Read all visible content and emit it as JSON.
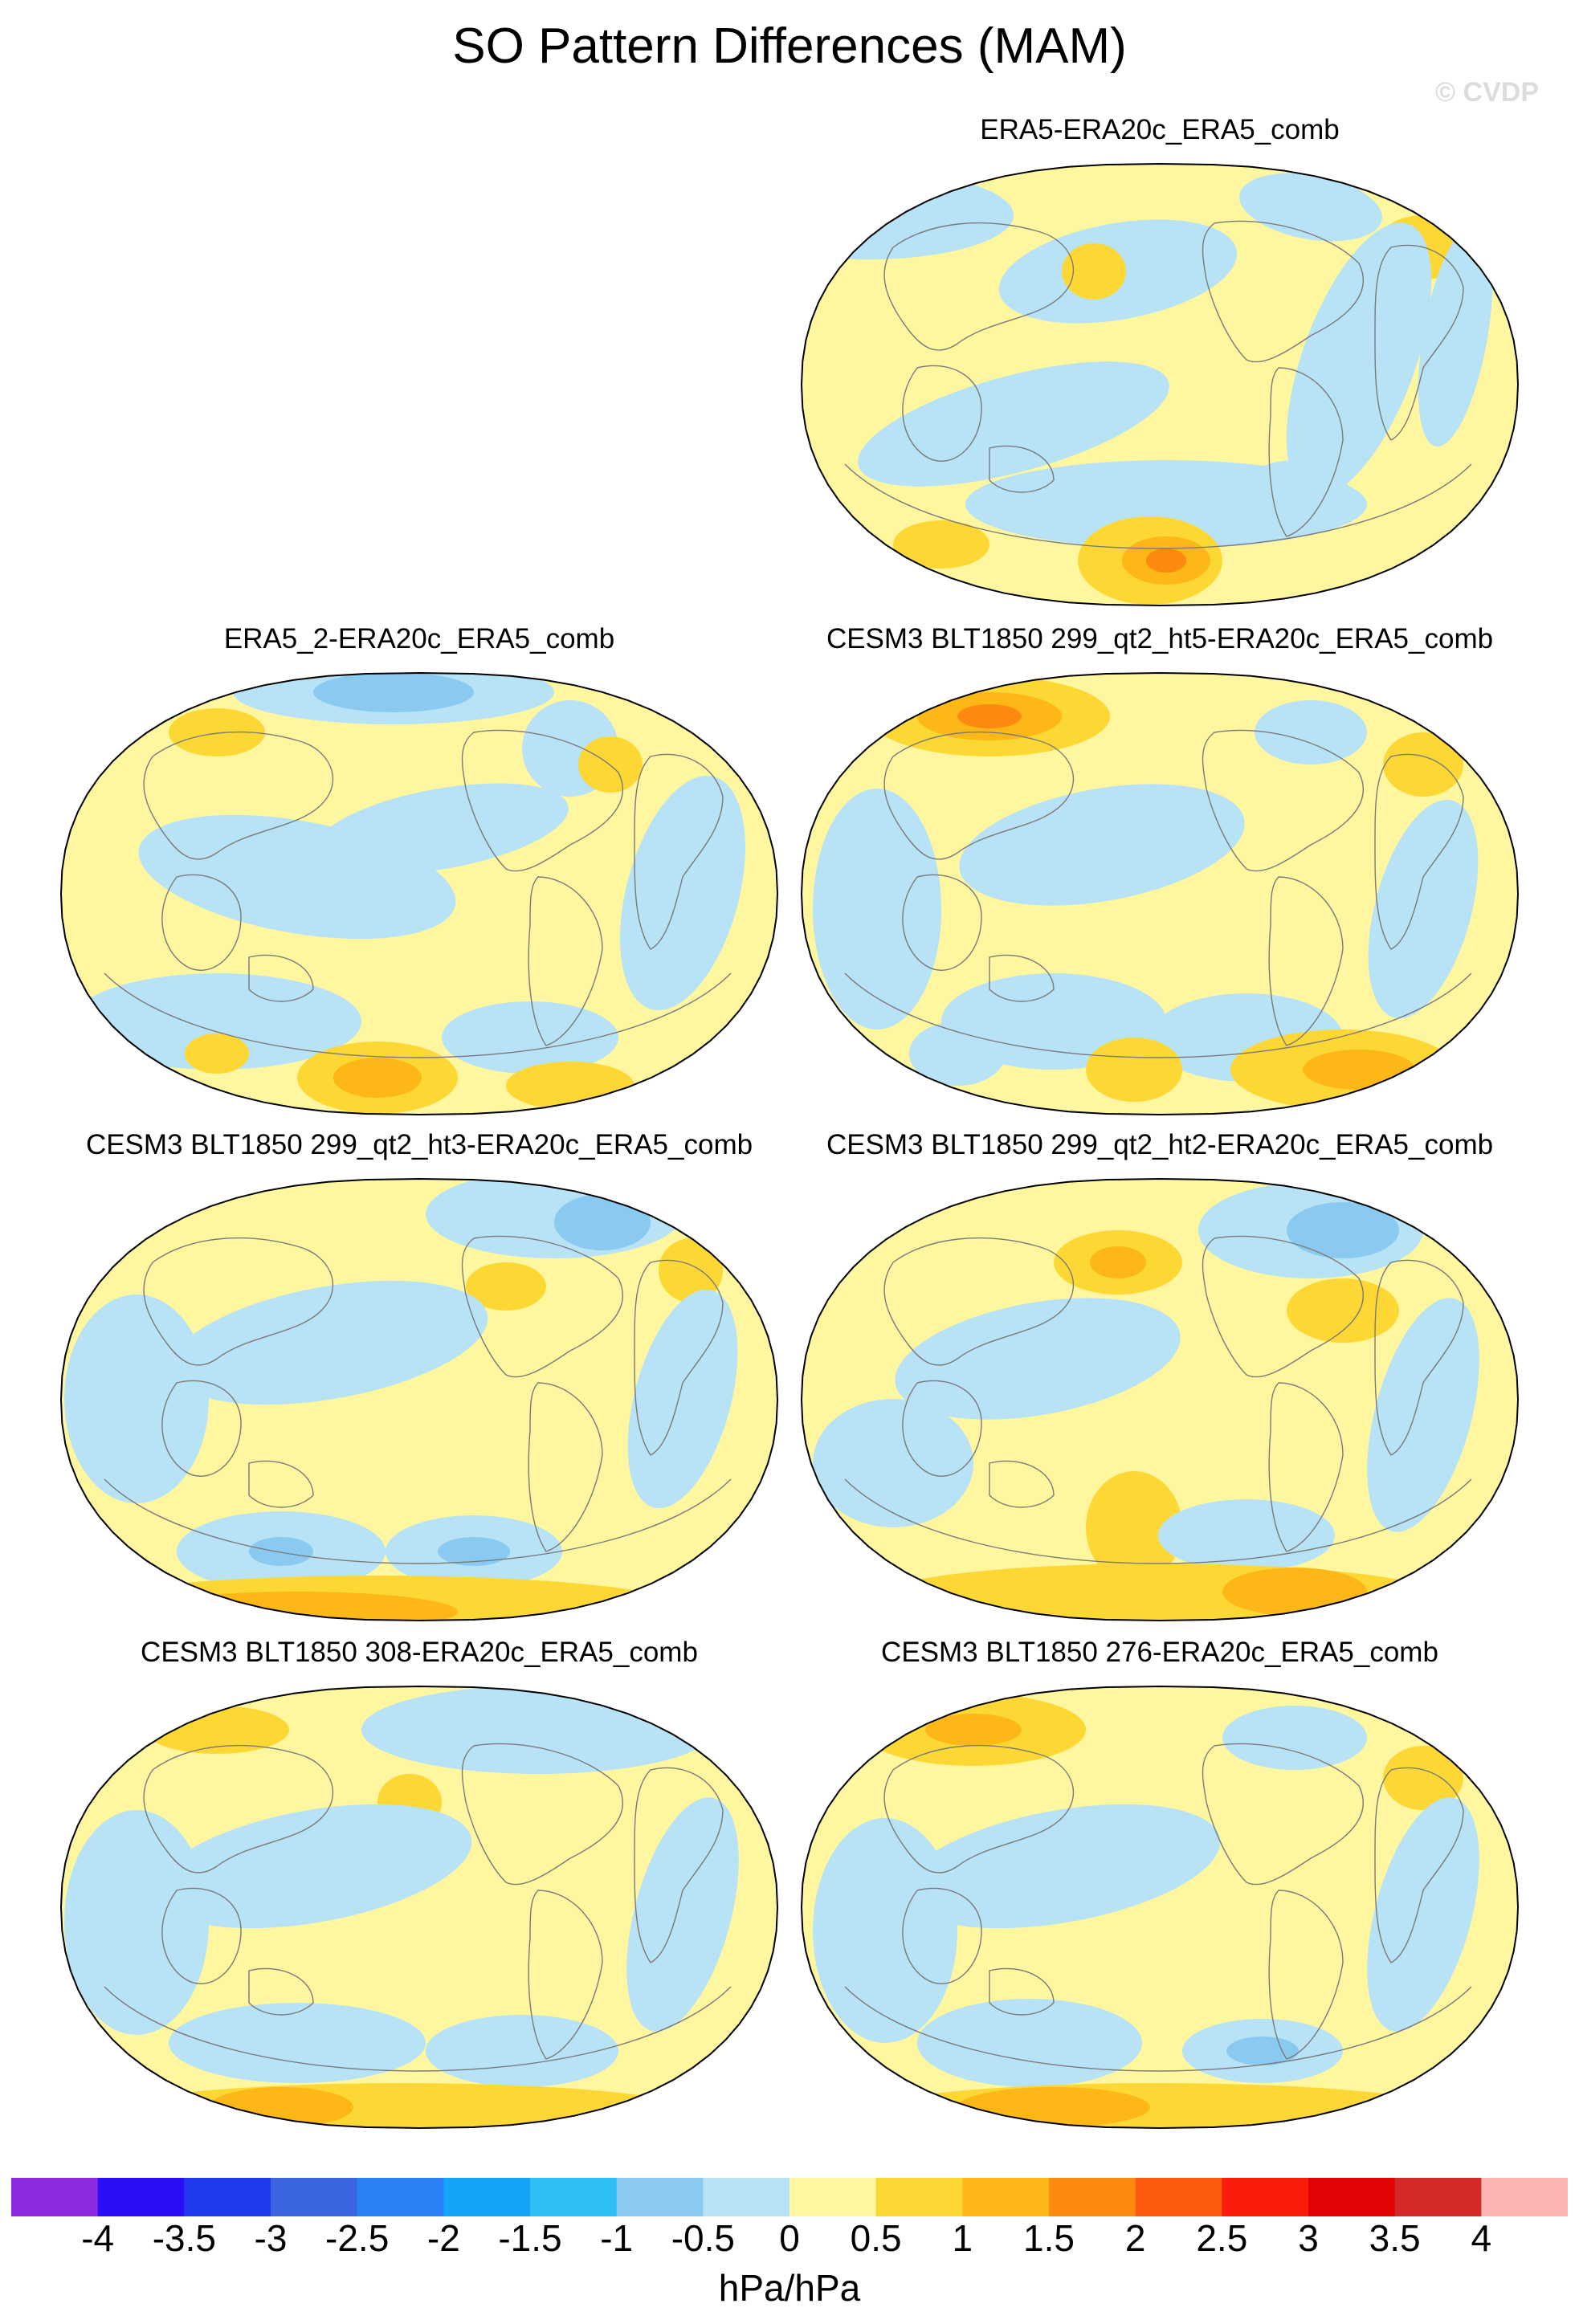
{
  "title": "SO Pattern Differences (MAM)",
  "watermark": "© CVDP",
  "panels": [
    {
      "title": "ERA5-ERA20c_ERA5_comb"
    },
    {
      "title": "ERA5_2-ERA20c_ERA5_comb"
    },
    {
      "title": "CESM3 BLT1850 299_qt2_ht5-ERA20c_ERA5_comb"
    },
    {
      "title": "CESM3 BLT1850 299_qt2_ht3-ERA20c_ERA5_comb"
    },
    {
      "title": "CESM3 BLT1850 299_qt2_ht2-ERA20c_ERA5_comb"
    },
    {
      "title": "CESM3 BLT1850 308-ERA20c_ERA5_comb"
    },
    {
      "title": "CESM3 BLT1850 276-ERA20c_ERA5_comb"
    }
  ],
  "colorbar": {
    "labels": [
      "-4",
      "-3.5",
      "-3",
      "-2.5",
      "-2",
      "-1.5",
      "-1",
      "-0.5",
      "0",
      "0.5",
      "1",
      "1.5",
      "2",
      "2.5",
      "3",
      "3.5",
      "4"
    ],
    "colors": [
      "#8a2be2",
      "#2a0cf5",
      "#2039ea",
      "#3a64e0",
      "#2a80f5",
      "#14a4f5",
      "#2cbef5",
      "#8acaf0",
      "#b8e2f5",
      "#fff7a0",
      "#fdd835",
      "#fdb716",
      "#fd8a10",
      "#fc5a0c",
      "#fc1c0c",
      "#e00404",
      "#d62a2a",
      "#fcb4b4"
    ],
    "units": "hPa/hPa"
  },
  "map_palette": {
    "land_outline": "#7a7a7a",
    "base": "#fff7a0",
    "neg": [
      "#b8e2f5",
      "#8acaf0",
      "#2cbef5"
    ],
    "pos": [
      "#fdd835",
      "#fdb716",
      "#fd8a10"
    ]
  }
}
